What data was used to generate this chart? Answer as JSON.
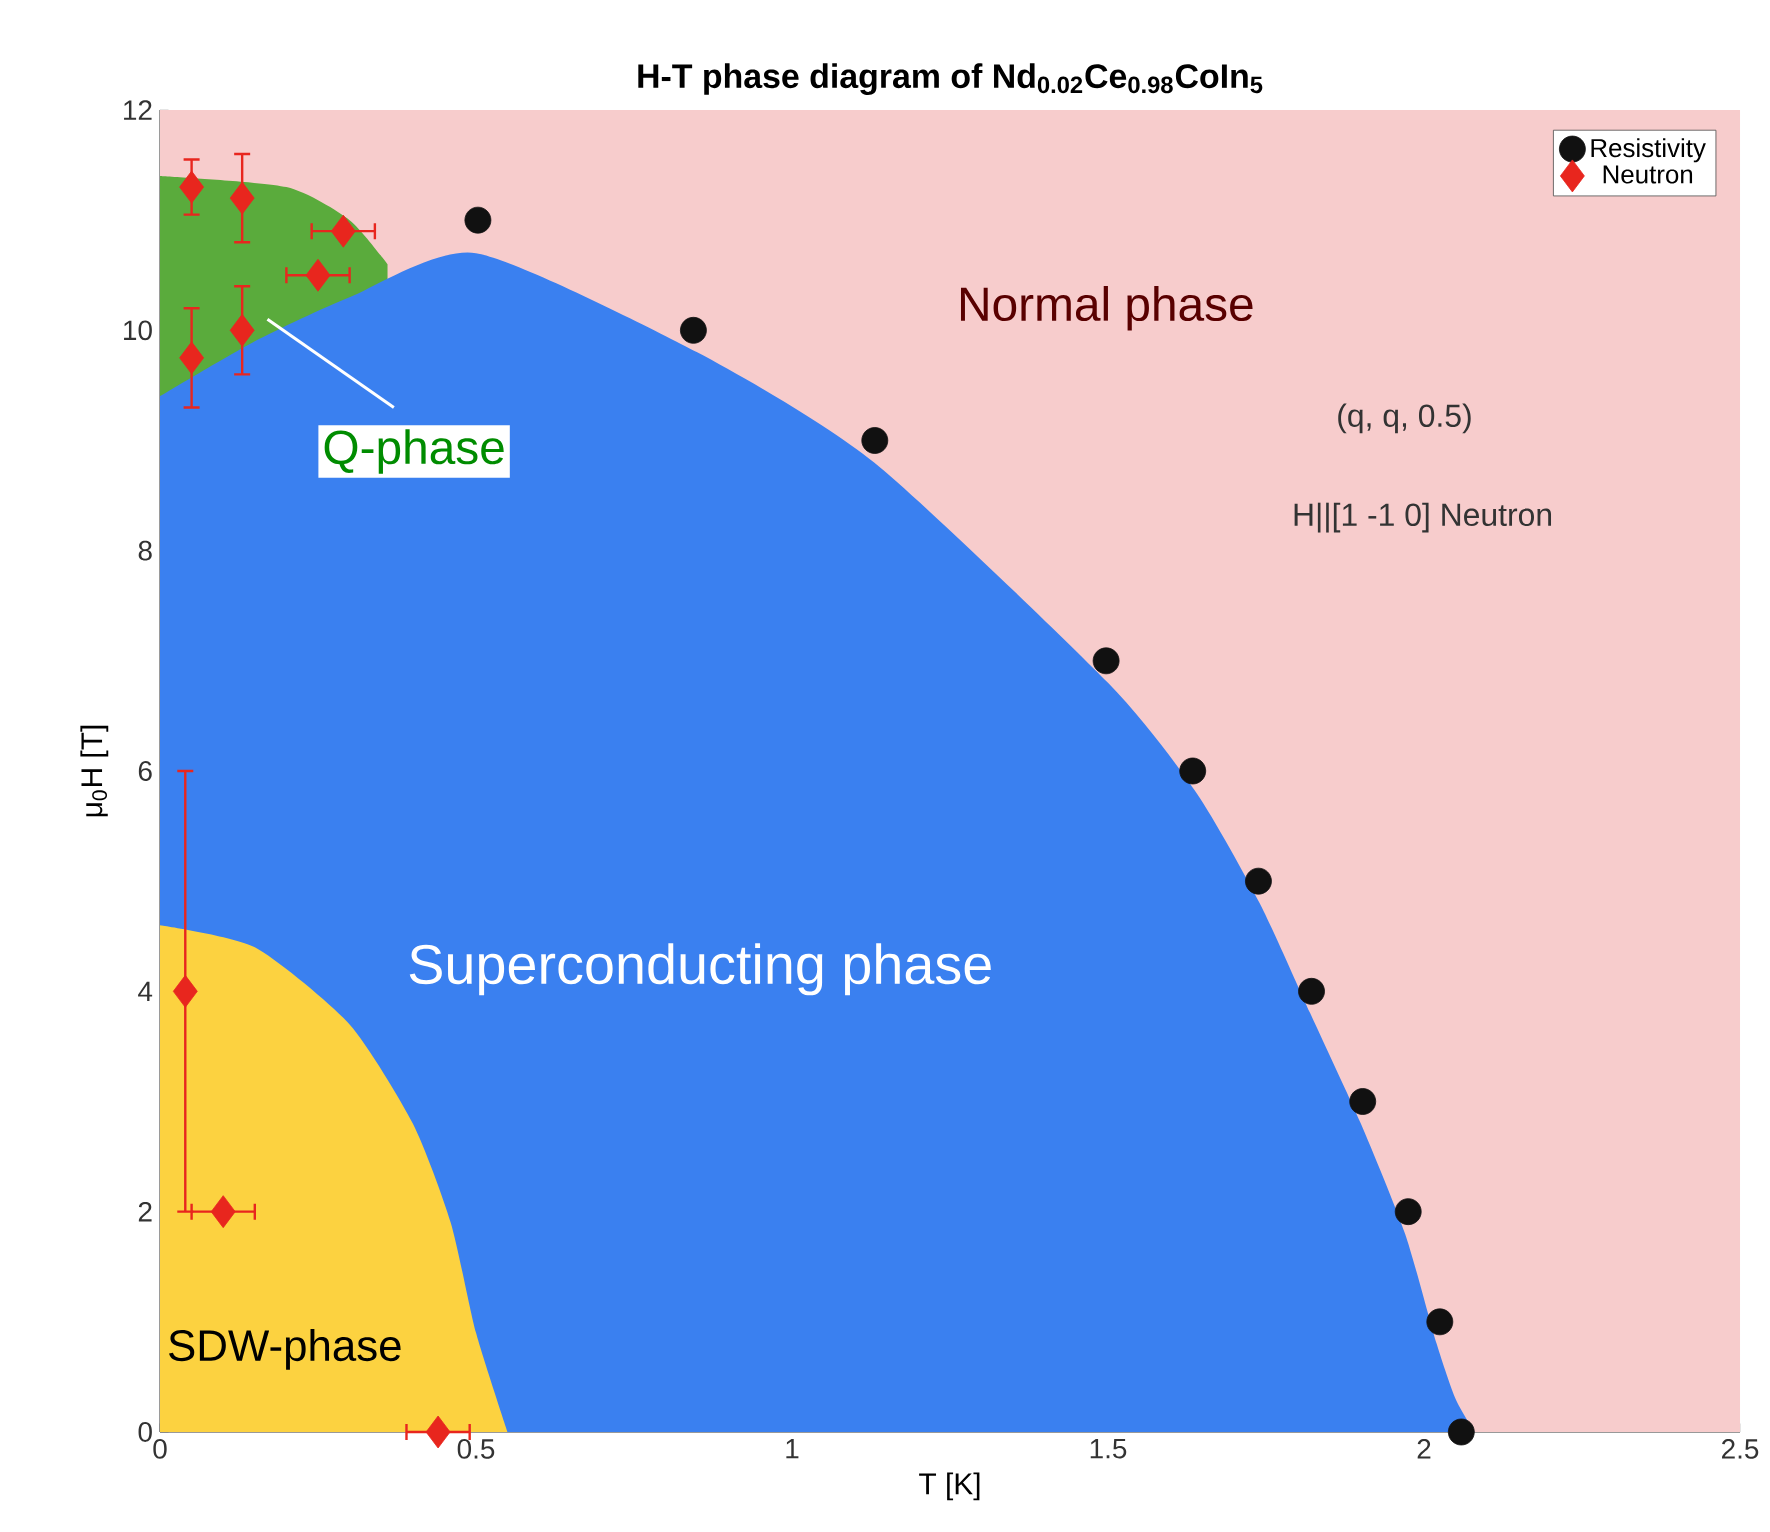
{
  "chart_data": {
    "type": "scatter",
    "title": "**H-T phase diagram of Nd$_{0.02}$Ce$_{0.98}$CoIn$_{5}$**",
    "xlabel": "T [K]",
    "ylabel": "μ$_{0}$H [T]",
    "xlim": [
      0,
      2.5
    ],
    "ylim": [
      0,
      12
    ],
    "xticks": [
      0,
      0.5,
      1,
      1.5,
      2,
      2.5
    ],
    "yticks": [
      0,
      2,
      4,
      6,
      8,
      10,
      12
    ],
    "grid": false,
    "legend": "top right",
    "bands": [
      {
        "axis": "y",
        "from": 0,
        "to": 12,
        "color": "#f7cccc"
      }
    ],
    "series": [
      {
        "type": "area",
        "color": "#5aab3c",
        "x": [
          0,
          0.2,
          0.3,
          0.36
        ],
        "values": [
          11.4,
          11.3,
          11.0,
          10.6
        ]
      },
      {
        "type": "area",
        "color": "#3a80f0",
        "x": [
          0,
          0.15,
          0.3,
          0.5,
          0.85,
          1.13,
          1.5,
          1.64,
          1.74,
          1.82,
          1.9,
          1.97,
          2.02,
          2.05,
          2.08
        ],
        "values": [
          9.4,
          9.9,
          10.3,
          10.7,
          9.8,
          8.8,
          6.8,
          5.8,
          4.8,
          3.8,
          2.8,
          1.8,
          0.8,
          0.3,
          0
        ]
      },
      {
        "type": "area",
        "color": "#fcd240",
        "x": [
          0,
          0.15,
          0.3,
          0.4,
          0.46,
          0.5,
          0.55
        ],
        "values": [
          4.6,
          4.4,
          3.7,
          2.8,
          1.9,
          0.9,
          0
        ]
      },
      {
        "name": "Resistivity",
        "color": "#111111",
        "marker": "circle",
        "x": [
          0.503,
          0.844,
          1.131,
          1.497,
          1.634,
          1.738,
          1.822,
          1.903,
          1.975,
          2.025,
          2.059
        ],
        "values": [
          11,
          10,
          9,
          7,
          6,
          5,
          4,
          3,
          2,
          1,
          0
        ]
      },
      {
        "name": "Neutron",
        "color": "#e8261e",
        "marker": "diamond",
        "x": [
          0.05,
          0.13,
          0.29,
          0.25,
          0.05,
          0.13,
          0.04,
          0.1,
          0.44
        ],
        "values": [
          11.3,
          11.2,
          10.9,
          10.5,
          9.75,
          10,
          4,
          2,
          0
        ],
        "errors": [
          0.25,
          0.4,
          null,
          null,
          0.45,
          0.4,
          [
            2,
            6
          ],
          null,
          null
        ],
        "xerrors": [
          null,
          null,
          0.05,
          0.05,
          null,
          null,
          null,
          0.05,
          0.05
        ]
      }
    ],
    "annotations": [
      "Normal phase",
      "Q-phase",
      "(q, q, 0.5)",
      "H||[1 -1 0] Neutron",
      "Superconducting phase",
      "SDW-phase"
    ]
  }
}
